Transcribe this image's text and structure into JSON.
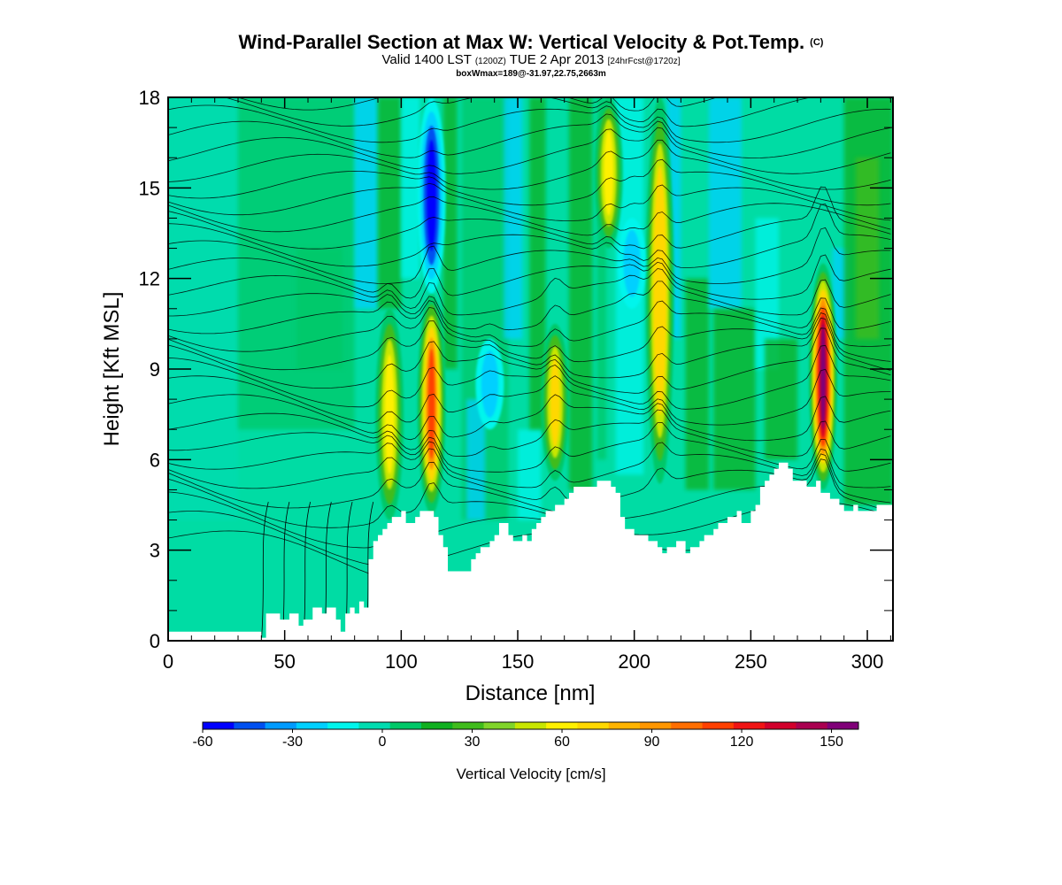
{
  "header": {
    "title": "Wind-Parallel Section at Max W: Vertical Velocity & Pot.Temp.",
    "title_mark": "(C)",
    "sub_valid": "Valid 1400 LST",
    "sub_z": "(1200Z)",
    "sub_date": "TUE 2 Apr 2013",
    "sub_fcst": "[24hrFcst@1720z]",
    "note": "boxWmax=189@-31.97,22.75,2663m"
  },
  "chart_data": {
    "type": "heatmap",
    "title": "Wind-Parallel Section at Max W: Vertical Velocity & Pot.Temp.",
    "xlabel": "Distance [nm]",
    "ylabel": "Height [Kft MSL]",
    "xlim": [
      0,
      311
    ],
    "ylim": [
      0,
      18
    ],
    "x_ticks": [
      "0",
      "50",
      "100",
      "150",
      "200",
      "250",
      "300"
    ],
    "x_tick_values": [
      0,
      50,
      100,
      150,
      200,
      250,
      300
    ],
    "y_ticks": [
      "0",
      "3",
      "6",
      "9",
      "12",
      "15",
      "18"
    ],
    "y_tick_values": [
      0,
      3,
      6,
      9,
      12,
      15,
      18
    ],
    "terrain": [
      [
        0,
        0.3
      ],
      [
        18,
        0.3
      ],
      [
        36,
        0.3
      ],
      [
        38,
        0.3
      ],
      [
        40,
        0.1
      ],
      [
        42,
        0.9
      ],
      [
        46,
        0.9
      ],
      [
        48,
        0.7
      ],
      [
        50,
        0.7
      ],
      [
        52,
        0.9
      ],
      [
        54,
        0.9
      ],
      [
        56,
        0.5
      ],
      [
        58,
        0.7
      ],
      [
        60,
        0.7
      ],
      [
        62,
        1.1
      ],
      [
        64,
        1.1
      ],
      [
        66,
        0.9
      ],
      [
        68,
        1.1
      ],
      [
        70,
        1.1
      ],
      [
        72,
        0.7
      ],
      [
        74,
        0.3
      ],
      [
        76,
        0.9
      ],
      [
        78,
        1.1
      ],
      [
        80,
        0.9
      ],
      [
        82,
        1.3
      ],
      [
        84,
        1.1
      ],
      [
        86,
        2.7
      ],
      [
        88,
        3.3
      ],
      [
        90,
        3.5
      ],
      [
        92,
        3.7
      ],
      [
        94,
        3.9
      ],
      [
        96,
        4.1
      ],
      [
        98,
        4.1
      ],
      [
        100,
        4.3
      ],
      [
        102,
        3.9
      ],
      [
        104,
        3.9
      ],
      [
        106,
        4.1
      ],
      [
        108,
        4.3
      ],
      [
        112,
        4.3
      ],
      [
        114,
        4.1
      ],
      [
        116,
        3.5
      ],
      [
        118,
        3.1
      ],
      [
        120,
        2.3
      ],
      [
        122,
        2.3
      ],
      [
        128,
        2.3
      ],
      [
        130,
        2.7
      ],
      [
        132,
        2.9
      ],
      [
        134,
        3.1
      ],
      [
        136,
        3.1
      ],
      [
        138,
        3.3
      ],
      [
        140,
        3.5
      ],
      [
        142,
        3.9
      ],
      [
        144,
        3.9
      ],
      [
        146,
        3.5
      ],
      [
        148,
        3.3
      ],
      [
        150,
        3.3
      ],
      [
        152,
        3.5
      ],
      [
        154,
        3.3
      ],
      [
        156,
        3.7
      ],
      [
        158,
        3.9
      ],
      [
        160,
        4.1
      ],
      [
        162,
        4.3
      ],
      [
        164,
        4.3
      ],
      [
        166,
        4.5
      ],
      [
        168,
        4.5
      ],
      [
        170,
        4.7
      ],
      [
        172,
        4.9
      ],
      [
        174,
        5.1
      ],
      [
        178,
        5.1
      ],
      [
        182,
        5.1
      ],
      [
        184,
        5.3
      ],
      [
        188,
        5.3
      ],
      [
        190,
        5.1
      ],
      [
        192,
        4.9
      ],
      [
        194,
        4.1
      ],
      [
        196,
        3.7
      ],
      [
        198,
        3.7
      ],
      [
        200,
        3.5
      ],
      [
        202,
        3.5
      ],
      [
        204,
        3.5
      ],
      [
        206,
        3.3
      ],
      [
        208,
        3.3
      ],
      [
        210,
        3.1
      ],
      [
        212,
        2.9
      ],
      [
        214,
        3.1
      ],
      [
        216,
        3.1
      ],
      [
        218,
        3.3
      ],
      [
        220,
        3.3
      ],
      [
        222,
        2.9
      ],
      [
        224,
        3.1
      ],
      [
        226,
        3.1
      ],
      [
        228,
        3.3
      ],
      [
        230,
        3.5
      ],
      [
        232,
        3.5
      ],
      [
        234,
        3.7
      ],
      [
        236,
        3.9
      ],
      [
        238,
        3.9
      ],
      [
        240,
        4.1
      ],
      [
        242,
        4.1
      ],
      [
        244,
        4.3
      ],
      [
        246,
        3.9
      ],
      [
        248,
        3.9
      ],
      [
        250,
        4.3
      ],
      [
        252,
        4.5
      ],
      [
        254,
        5.1
      ],
      [
        256,
        5.3
      ],
      [
        258,
        5.5
      ],
      [
        260,
        5.7
      ],
      [
        262,
        5.9
      ],
      [
        264,
        5.9
      ],
      [
        266,
        5.7
      ],
      [
        268,
        5.3
      ],
      [
        272,
        5.3
      ],
      [
        274,
        5.1
      ],
      [
        276,
        5.1
      ],
      [
        278,
        5.3
      ],
      [
        280,
        4.9
      ],
      [
        282,
        4.9
      ],
      [
        284,
        4.7
      ],
      [
        286,
        4.7
      ],
      [
        288,
        4.5
      ],
      [
        290,
        4.3
      ],
      [
        292,
        4.3
      ],
      [
        294,
        4.5
      ],
      [
        296,
        4.3
      ],
      [
        298,
        4.3
      ],
      [
        300,
        4.3
      ],
      [
        302,
        4.3
      ],
      [
        304,
        4.5
      ],
      [
        311,
        4.5
      ]
    ],
    "updraft_cores": [
      {
        "x": 95,
        "height": [
          4,
          11
        ],
        "w_max": 60
      },
      {
        "x": 113,
        "height": [
          4.2,
          11.5
        ],
        "w_max": 110
      },
      {
        "x": 166,
        "height": [
          5.3,
          10.5
        ],
        "w_max": 70
      },
      {
        "x": 189,
        "height": [
          13,
          18
        ],
        "w_max": 55
      },
      {
        "x": 211,
        "height": [
          5.2,
          18
        ],
        "w_max": 75
      },
      {
        "x": 281,
        "height": [
          5,
          12.5
        ],
        "w_max": 150
      }
    ],
    "downdraft_cores": [
      {
        "x": 113,
        "height": [
          11.5,
          18
        ],
        "w_min": -55
      },
      {
        "x": 138,
        "height": [
          7,
          10
        ],
        "w_min": -20
      },
      {
        "x": 199,
        "height": [
          11,
          14
        ],
        "w_min": -20
      }
    ],
    "colorbar": {
      "label": "Vertical Velocity [cm/s]",
      "ticks": [
        "-60",
        "-30",
        "0",
        "30",
        "60",
        "90",
        "120",
        "150"
      ],
      "tick_values": [
        -60,
        -30,
        0,
        30,
        60,
        90,
        120,
        150
      ],
      "min": -60,
      "max": 159,
      "colors": [
        "#0000ff",
        "#0050f0",
        "#009bff",
        "#00d0ff",
        "#00f5ec",
        "#00dcb0",
        "#00c868",
        "#10b020",
        "#40bc1c",
        "#80d42a",
        "#c8e600",
        "#fff000",
        "#ffd800",
        "#ffb400",
        "#ff9600",
        "#ff6e00",
        "#ff4000",
        "#f01414",
        "#d2002c",
        "#aa0050",
        "#800078"
      ]
    },
    "contour_type": "potential temperature isentropes",
    "grid": false
  }
}
